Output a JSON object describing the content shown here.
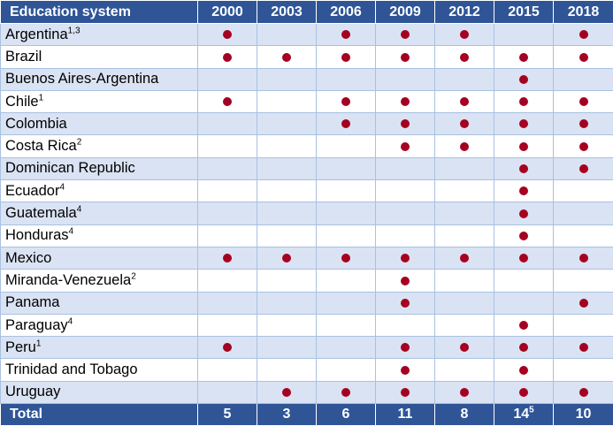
{
  "table": {
    "header_label": "Education system",
    "years": [
      "2000",
      "2003",
      "2006",
      "2009",
      "2012",
      "2015",
      "2018"
    ],
    "mark_color": "#a50021",
    "header_color": "#2f5597",
    "band_color": "#dae3f3",
    "rows": [
      {
        "name": "Argentina",
        "sup": "1,3",
        "marks": [
          1,
          0,
          1,
          1,
          1,
          0,
          1
        ]
      },
      {
        "name": "Brazil",
        "sup": "",
        "marks": [
          1,
          1,
          1,
          1,
          1,
          1,
          1
        ]
      },
      {
        "name": "Buenos Aires-Argentina",
        "sup": "",
        "marks": [
          0,
          0,
          0,
          0,
          0,
          1,
          0
        ]
      },
      {
        "name": "Chile",
        "sup": "1",
        "marks": [
          1,
          0,
          1,
          1,
          1,
          1,
          1
        ]
      },
      {
        "name": "Colombia",
        "sup": "",
        "marks": [
          0,
          0,
          1,
          1,
          1,
          1,
          1
        ]
      },
      {
        "name": "Costa Rica",
        "sup": "2",
        "marks": [
          0,
          0,
          0,
          1,
          1,
          1,
          1
        ]
      },
      {
        "name": "Dominican Republic",
        "sup": "",
        "marks": [
          0,
          0,
          0,
          0,
          0,
          1,
          1
        ]
      },
      {
        "name": "Ecuador",
        "sup": "4",
        "marks": [
          0,
          0,
          0,
          0,
          0,
          1,
          0
        ]
      },
      {
        "name": "Guatemala",
        "sup": "4",
        "marks": [
          0,
          0,
          0,
          0,
          0,
          1,
          0
        ]
      },
      {
        "name": "Honduras",
        "sup": "4",
        "marks": [
          0,
          0,
          0,
          0,
          0,
          1,
          0
        ]
      },
      {
        "name": "Mexico",
        "sup": "",
        "marks": [
          1,
          1,
          1,
          1,
          1,
          1,
          1
        ]
      },
      {
        "name": "Miranda-Venezuela",
        "sup": "2",
        "marks": [
          0,
          0,
          0,
          1,
          0,
          0,
          0
        ]
      },
      {
        "name": "Panama",
        "sup": "",
        "marks": [
          0,
          0,
          0,
          1,
          0,
          0,
          1
        ]
      },
      {
        "name": "Paraguay",
        "sup": "4",
        "marks": [
          0,
          0,
          0,
          0,
          0,
          1,
          0
        ]
      },
      {
        "name": "Peru",
        "sup": "1",
        "marks": [
          1,
          0,
          0,
          1,
          1,
          1,
          1
        ]
      },
      {
        "name": "Trinidad and Tobago",
        "sup": "",
        "marks": [
          0,
          0,
          0,
          1,
          0,
          1,
          0
        ]
      },
      {
        "name": "Uruguay",
        "sup": "",
        "marks": [
          0,
          1,
          1,
          1,
          1,
          1,
          1
        ]
      }
    ],
    "total": {
      "label": "Total",
      "values": [
        {
          "value": "5",
          "sup": ""
        },
        {
          "value": "3",
          "sup": ""
        },
        {
          "value": "6",
          "sup": ""
        },
        {
          "value": "11",
          "sup": ""
        },
        {
          "value": "8",
          "sup": ""
        },
        {
          "value": "14",
          "sup": "5"
        },
        {
          "value": "10",
          "sup": ""
        }
      ]
    }
  }
}
